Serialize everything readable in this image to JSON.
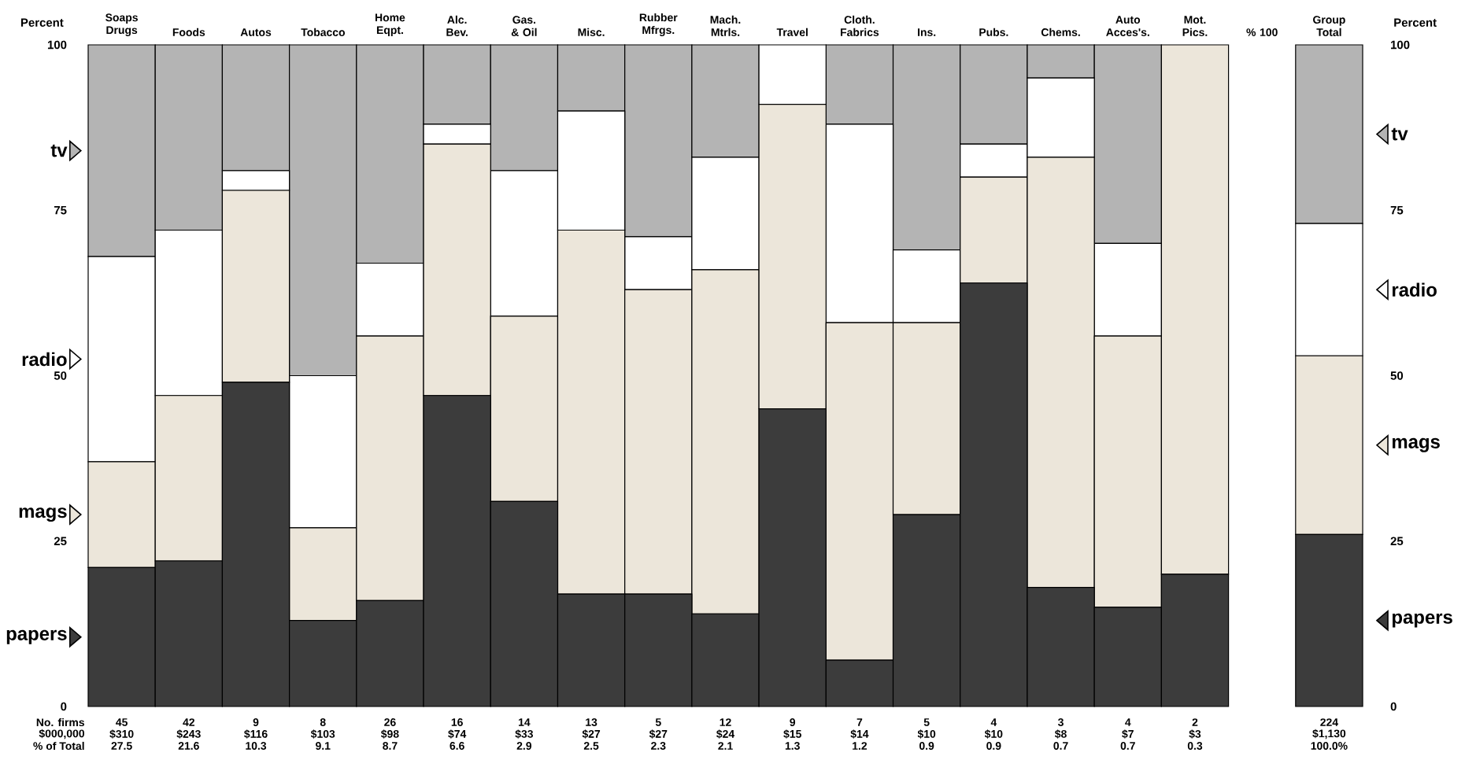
{
  "chart_data": {
    "type": "bar",
    "stacked": true,
    "categories": [
      "Soaps Drugs",
      "Foods",
      "Autos",
      "Tobacco",
      "Home Eqpt.",
      "Alc. Bev.",
      "Gas. & Oil",
      "Misc.",
      "Rubber Mfrgs.",
      "Mach. Mtrls.",
      "Travel",
      "Cloth. Fabrics",
      "Ins.",
      "Pubs.",
      "Chems.",
      "Auto Acces's.",
      "Mot. Pics.",
      "% 100",
      "Group Total"
    ],
    "series": [
      {
        "name": "papers",
        "color": "#3c3c3c",
        "values": [
          21,
          22,
          49,
          13,
          16,
          47,
          31,
          17,
          17,
          14,
          45,
          7,
          29,
          64,
          18,
          15,
          20,
          null,
          26
        ]
      },
      {
        "name": "mags",
        "color": "#ece6da",
        "values": [
          16,
          25,
          29,
          14,
          40,
          38,
          28,
          55,
          46,
          52,
          46,
          51,
          29,
          16,
          65,
          41,
          80,
          null,
          27
        ]
      },
      {
        "name": "radio",
        "color": "#ffffff",
        "values": [
          31,
          25,
          3,
          23,
          11,
          3,
          22,
          18,
          8,
          17,
          9,
          30,
          11,
          5,
          12,
          14,
          0,
          null,
          20
        ]
      },
      {
        "name": "tv",
        "color": "#b4b4b4",
        "values": [
          32,
          28,
          19,
          50,
          33,
          12,
          19,
          10,
          29,
          17,
          0,
          12,
          31,
          15,
          5,
          30,
          0,
          null,
          27
        ]
      }
    ],
    "legend": "right",
    "ylabel": "Percent",
    "ylim": [
      0,
      100
    ],
    "yticks": [
      0,
      25,
      50,
      75,
      100
    ],
    "y2label": "Percent",
    "y2lim": [
      0,
      100
    ],
    "y2ticks": [
      0,
      25,
      50,
      75,
      100
    ],
    "annotations": [
      "No. firms",
      "$000,000",
      "% of Total",
      "45",
      "$310",
      "27.5",
      "42",
      "$243",
      "21.6",
      "9",
      "$116",
      "10.3",
      "8",
      "$103",
      "9.1",
      "26",
      "$98",
      "8.7",
      "16",
      "$74",
      "6.6",
      "14",
      "$33",
      "2.9",
      "13",
      "$27",
      "2.5",
      "5",
      "$27",
      "2.3",
      "12",
      "$24",
      "2.1",
      "9",
      "$15",
      "1.3",
      "7",
      "$14",
      "1.2",
      "5",
      "$10",
      "0.9",
      "4",
      "$10",
      "0.9",
      "3",
      "$8",
      "0.7",
      "4",
      "$7",
      "0.7",
      "2",
      "$3",
      "0.3",
      "224",
      "$1,130",
      "100.0%"
    ]
  }
}
